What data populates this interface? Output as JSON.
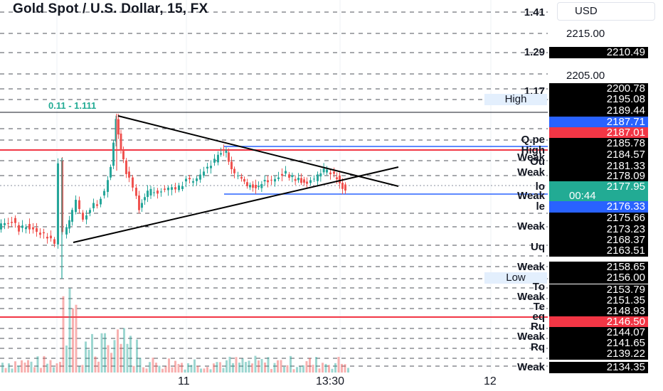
{
  "header": {
    "title": "Gold Spot / U.S. Dollar, 15, FX",
    "currency_button": "USD"
  },
  "fib_label": "0.11 - 1.111",
  "price_axis": {
    "plain_labels": [
      "2215.00",
      "2205.00"
    ],
    "tags": [
      {
        "price": "2210.49",
        "name": "1.29",
        "bg": "#000000"
      },
      {
        "price": "2200.78",
        "name": "1.17",
        "bg": "#000000"
      },
      {
        "price": "2195.08",
        "name": "High",
        "bg": "#000000"
      },
      {
        "price": "2189.44",
        "name": "",
        "bg": "#000000"
      },
      {
        "price": "2187.71",
        "name": "",
        "bg": "#2962ff"
      },
      {
        "price": "2187.01",
        "name": "",
        "bg": "#f23645"
      },
      {
        "price": "2185.78",
        "name": "Q.pe",
        "bg": "#000000"
      },
      {
        "price": "2184.57",
        "name": "High",
        "bg": "#000000"
      },
      {
        "price": "2181.33",
        "name": "Ou",
        "bg": "#000000"
      },
      {
        "price": "2178.09",
        "name": "Weak",
        "bg": "#000000"
      },
      {
        "price": "2177.95",
        "name": "lo",
        "bg": "#22ab94"
      },
      {
        "price": "00:44",
        "name": "",
        "bg": "#22ab94"
      },
      {
        "price": "2176.33",
        "name": "le",
        "bg": "#2962ff"
      },
      {
        "price": "2175.66",
        "name": "",
        "bg": "#000000"
      },
      {
        "price": "2173.23",
        "name": "Weak",
        "bg": "#000000"
      },
      {
        "price": "2168.37",
        "name": "",
        "bg": "#000000"
      },
      {
        "price": "2163.51",
        "name": "Uq",
        "bg": "#000000"
      },
      {
        "price": "2158.65",
        "name": "Weak",
        "bg": "#000000"
      },
      {
        "price": "2156.00",
        "name": "Low",
        "bg": "#000000"
      },
      {
        "price": "2153.79",
        "name": "To",
        "bg": "#000000"
      },
      {
        "price": "2151.35",
        "name": "Weak",
        "bg": "#000000"
      },
      {
        "price": "2148.93",
        "name": "Te",
        "bg": "#000000"
      },
      {
        "price": "2146.50",
        "name": "eq",
        "bg": "#f23645"
      },
      {
        "price": "2144.07",
        "name": "Ru",
        "bg": "#000000"
      },
      {
        "price": "2141.65",
        "name": "Weak",
        "bg": "#000000"
      },
      {
        "price": "2139.22",
        "name": "Rq",
        "bg": "#000000"
      },
      {
        "price": "2134.35",
        "name": "Weak",
        "bg": "#000000"
      }
    ],
    "weak_extra": "Weak",
    "high_box": "High",
    "low_box": "Low",
    "top_name": "1.41"
  },
  "time_axis": [
    "11",
    "13:30",
    "12"
  ],
  "colors": {
    "up": "#26a69a",
    "down": "#ef5350",
    "red_line": "#f23645",
    "blue_line": "#2962ff",
    "accent_green": "#22ab94"
  }
}
